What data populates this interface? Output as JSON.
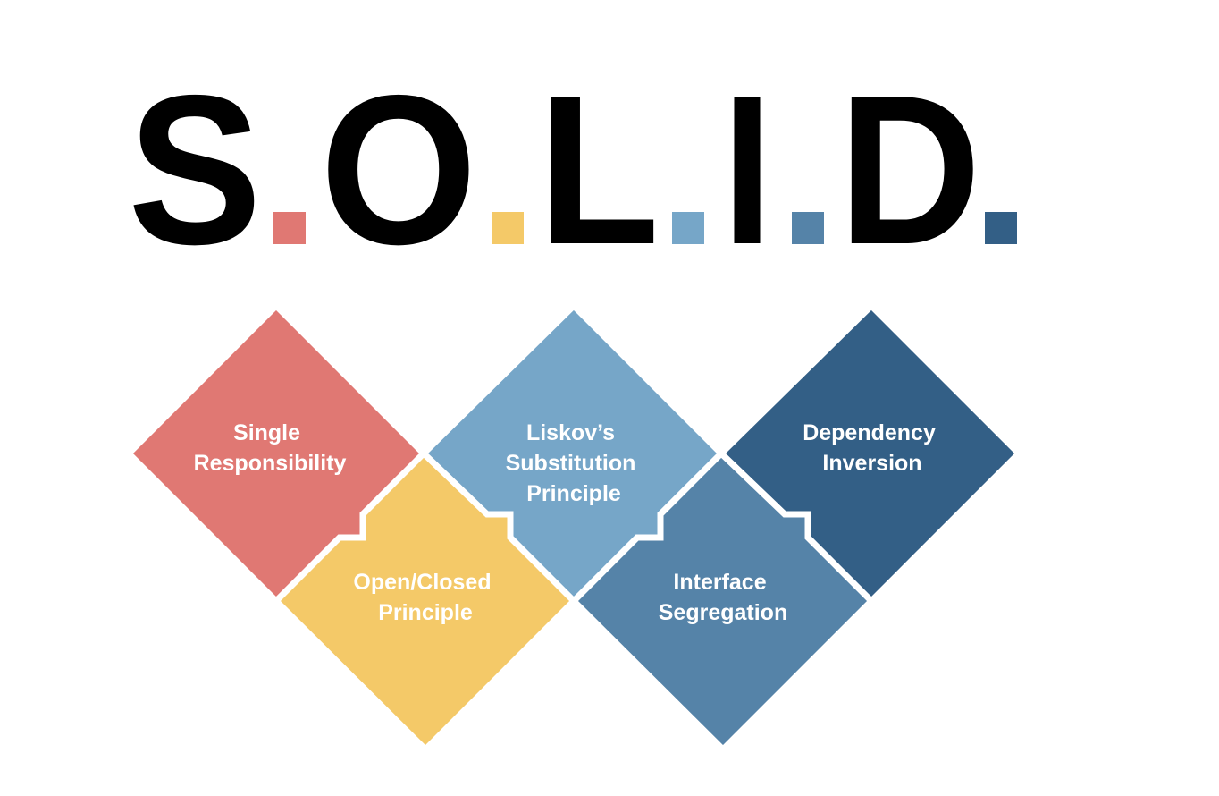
{
  "title": {
    "letters": [
      "S",
      "O",
      "L",
      "I",
      "D"
    ],
    "dot_colors": [
      "#e07873",
      "#f4c968",
      "#76a6c8",
      "#5583a8",
      "#335f86"
    ]
  },
  "principles": [
    {
      "line1": "Single",
      "line2": "Responsibility",
      "line3": "",
      "color": "#e07873"
    },
    {
      "line1": "Open/Closed",
      "line2": "Principle",
      "line3": "",
      "color": "#f4c968"
    },
    {
      "line1": "Liskov’s",
      "line2": "Substitution",
      "line3": "Principle",
      "color": "#76a6c8"
    },
    {
      "line1": "Interface",
      "line2": "Segregation",
      "line3": "",
      "color": "#5583a8"
    },
    {
      "line1": "Dependency",
      "line2": "Inversion",
      "line3": "",
      "color": "#335f86"
    }
  ]
}
